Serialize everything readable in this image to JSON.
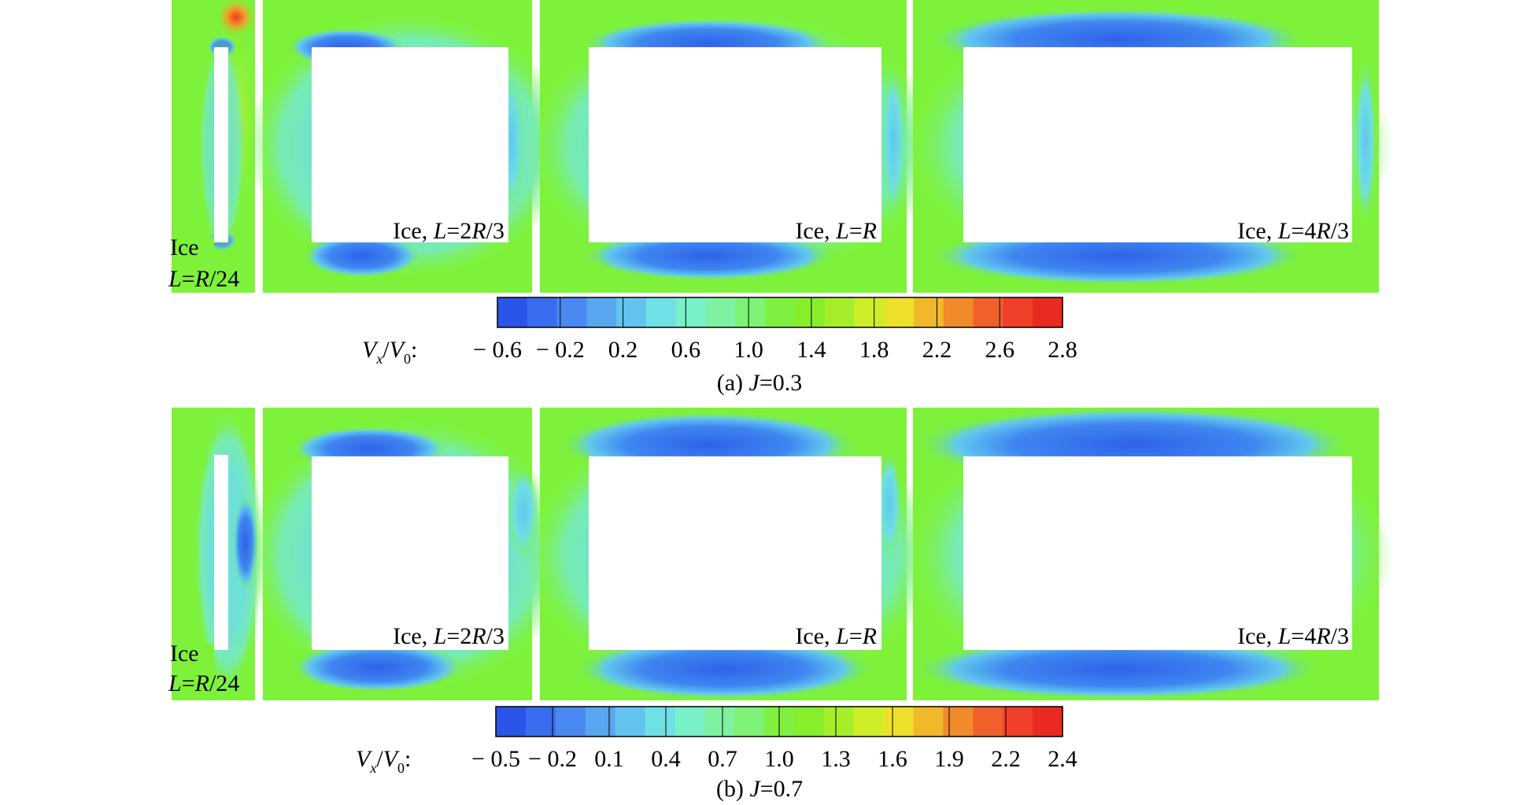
{
  "rows": [
    {
      "id": "a",
      "caption": {
        "prefix": "(a) ",
        "var": "J",
        "value": "=0.3"
      },
      "scale_label": {
        "v": "V",
        "vsub": "x",
        "slash": "/",
        "v0": "V",
        "v0sub": "0",
        "colon": ":"
      },
      "ticks": [
        "− 0.6",
        "− 0.2",
        "0.2",
        "0.6",
        "1.0",
        "1.4",
        "1.8",
        "2.2",
        "2.6",
        "2.8"
      ],
      "panels": [
        {
          "line1": "Ice",
          "line2_var1": "L",
          "line2_eq": "=",
          "line2_var2": "R",
          "line2_tail": "/24"
        },
        {
          "text": "Ice, ",
          "var1": "L",
          "eq": "=2",
          "var2": "R",
          "tail": "/3"
        },
        {
          "text": "Ice, ",
          "var1": "L",
          "eq": "=",
          "var2": "R",
          "tail": ""
        },
        {
          "text": "Ice, ",
          "var1": "L",
          "eq": "=4",
          "var2": "R",
          "tail": "/3"
        }
      ]
    },
    {
      "id": "b",
      "caption": {
        "prefix": "(b) ",
        "var": "J",
        "value": "=0.7"
      },
      "scale_label": {
        "v": "V",
        "vsub": "x",
        "slash": "/",
        "v0": "V",
        "v0sub": "0",
        "colon": ":"
      },
      "ticks": [
        "− 0.5",
        "− 0.2",
        "0.1",
        "0.4",
        "0.7",
        "1.0",
        "1.3",
        "1.6",
        "1.9",
        "2.2",
        "2.4"
      ],
      "panels": [
        {
          "line1": "Ice",
          "line2_var1": "L",
          "line2_eq": "=",
          "line2_var2": "R",
          "line2_tail": "/24"
        },
        {
          "text": "Ice, ",
          "var1": "L",
          "eq": "=2",
          "var2": "R",
          "tail": "/3"
        },
        {
          "text": "Ice, ",
          "var1": "L",
          "eq": "=",
          "var2": "R",
          "tail": ""
        },
        {
          "text": "Ice, ",
          "var1": "L",
          "eq": "=4",
          "var2": "R",
          "tail": "/3"
        }
      ]
    }
  ],
  "colors": {
    "background_flow": "#7ef23a",
    "low_velocity": "#2f6df0",
    "mid_velocity": "#5fd6e8",
    "high_velocity": "#f03a20",
    "colormap": [
      "#2b55e8",
      "#3a6cf0",
      "#4a88f2",
      "#58a6f0",
      "#62c4ee",
      "#6fe0e6",
      "#78f0c8",
      "#7ef2a0",
      "#7ef274",
      "#80f040",
      "#86ee2a",
      "#a6ee2a",
      "#cfee2a",
      "#eee02a",
      "#f0b82a",
      "#f08a2a",
      "#f0602a",
      "#f0402a",
      "#e82a20"
    ]
  }
}
